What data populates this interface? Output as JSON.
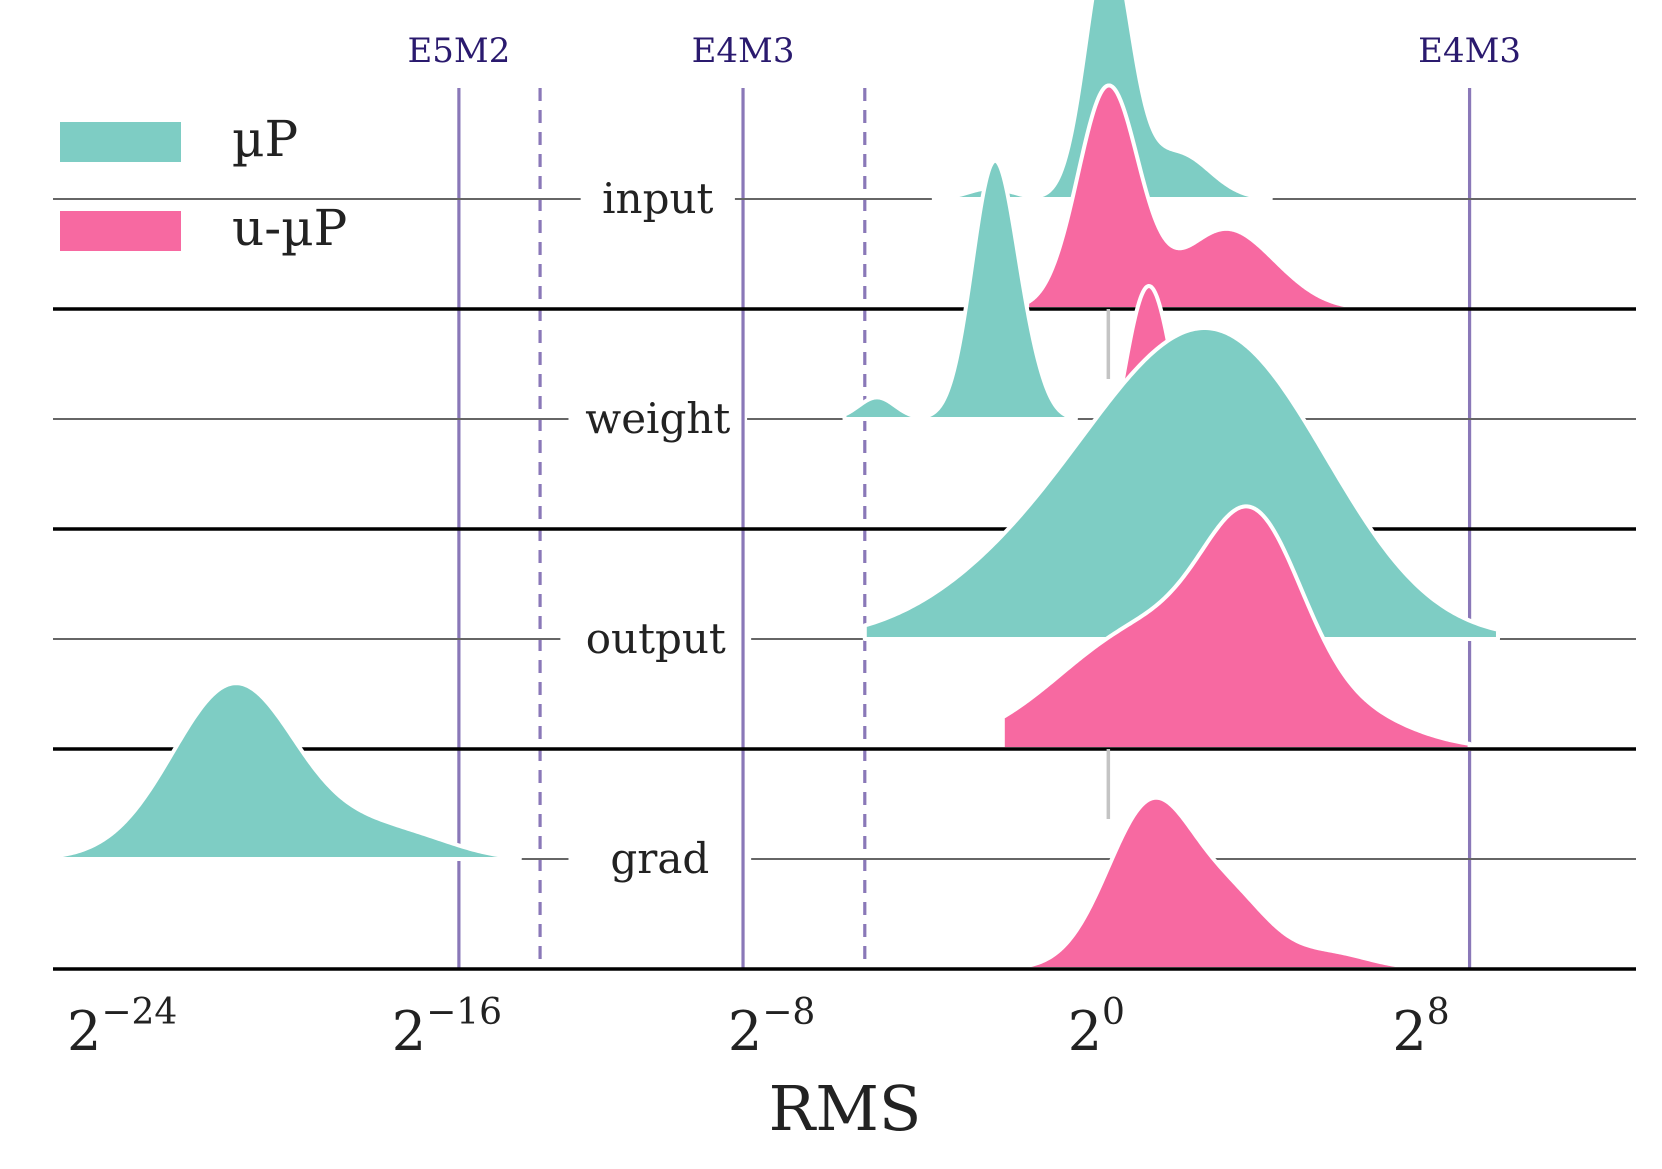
{
  "chart_data": {
    "type": "ridgeline",
    "title": "",
    "xlabel": "RMS",
    "x_scale": "log2",
    "x_range_log2": [
      -26,
      13
    ],
    "x_ticks": [
      {
        "log2": -24,
        "base": "2",
        "exp": "−24"
      },
      {
        "log2": -16,
        "base": "2",
        "exp": "−16"
      },
      {
        "log2": -8,
        "base": "2",
        "exp": "−8"
      },
      {
        "log2": 0,
        "base": "2",
        "exp": "0"
      },
      {
        "log2": 8,
        "base": "2",
        "exp": "8"
      }
    ],
    "legend": {
      "position": "top-left",
      "entries": [
        {
          "label": "µP",
          "color": "#7ecdc4"
        },
        {
          "label": "u-µP",
          "color": "#f769a1"
        }
      ]
    },
    "format_lines": [
      {
        "label": "E5M2",
        "log2": -16,
        "style": "solid",
        "show_label": true
      },
      {
        "label": "",
        "log2": -14,
        "style": "dashed",
        "show_label": false
      },
      {
        "label": "E4M3",
        "log2": -9,
        "style": "solid",
        "show_label": true
      },
      {
        "label": "",
        "log2": -6,
        "style": "dashed",
        "show_label": false
      },
      {
        "label": "E4M3",
        "log2": 8.9,
        "style": "solid",
        "show_label": true
      }
    ],
    "reference_log2": 0,
    "rows": [
      {
        "name": "input",
        "label_gap_log2": [
          -13,
          -9.2
        ],
        "series": [
          {
            "name": "µP",
            "color": "#7ecdc4",
            "range_log2": [
              -4.3,
              4.0
            ],
            "peaks": [
              [
                -2.9,
                0.55,
                0.04
              ],
              [
                0.0,
                0.55,
                0.95
              ],
              [
                1.7,
                0.8,
                0.17
              ]
            ]
          },
          {
            "name": "u-µP",
            "color": "#f769a1",
            "range_log2": [
              -2.0,
              6.0
            ],
            "peaks": [
              [
                0.0,
                0.75,
                0.82
              ],
              [
                2.8,
                1.05,
                0.28
              ],
              [
                4.2,
                0.9,
                0.05
              ]
            ]
          }
        ]
      },
      {
        "name": "weight",
        "label_gap_log2": [
          -13.3,
          -8.9
        ],
        "series": [
          {
            "name": "µP",
            "color": "#7ecdc4",
            "range_log2": [
              -6.5,
              -0.8
            ],
            "peaks": [
              [
                -5.7,
                0.45,
                0.08
              ],
              [
                -2.8,
                0.55,
                0.95
              ],
              [
                -1.9,
                0.4,
                0.08
              ]
            ]
          },
          {
            "name": "u-µP",
            "color": "#f769a1",
            "range_log2": [
              -1.3,
              7.2
            ],
            "peaks": [
              [
                1.0,
                0.65,
                0.9
              ],
              [
                5.5,
                0.6,
                0.04
              ]
            ]
          }
        ]
      },
      {
        "name": "output",
        "label_gap_log2": [
          -13.5,
          -8.8
        ],
        "series": [
          {
            "name": "µP",
            "color": "#7ecdc4",
            "range_log2": [
              -6.0,
              9.6
            ],
            "peaks": [
              [
                -3.0,
                2.0,
                0.08
              ],
              [
                1.5,
                2.8,
                0.88
              ],
              [
                4.0,
                2.3,
                0.4
              ]
            ]
          },
          {
            "name": "u-µP",
            "color": "#f769a1",
            "range_log2": [
              -2.6,
              8.9
            ],
            "peaks": [
              [
                1.0,
                2.2,
                0.45
              ],
              [
                3.6,
                1.2,
                0.62
              ],
              [
                5.8,
                1.6,
                0.12
              ]
            ]
          }
        ]
      },
      {
        "name": "grad",
        "label_gap_log2": [
          -13.3,
          -8.8
        ],
        "series": [
          {
            "name": "µP",
            "color": "#7ecdc4",
            "range_log2": [
              -26.0,
              -14.5
            ],
            "peaks": [
              [
                -21.5,
                1.55,
                0.65
              ],
              [
                -18.0,
                1.2,
                0.09
              ],
              [
                -16.5,
                1.0,
                0.03
              ]
            ]
          },
          {
            "name": "u-µP",
            "color": "#f769a1",
            "range_log2": [
              -2.3,
              7.8
            ],
            "peaks": [
              [
                1.1,
                1.1,
                0.62
              ],
              [
                3.2,
                0.9,
                0.2
              ],
              [
                5.4,
                1.0,
                0.06
              ]
            ]
          }
        ]
      }
    ]
  }
}
